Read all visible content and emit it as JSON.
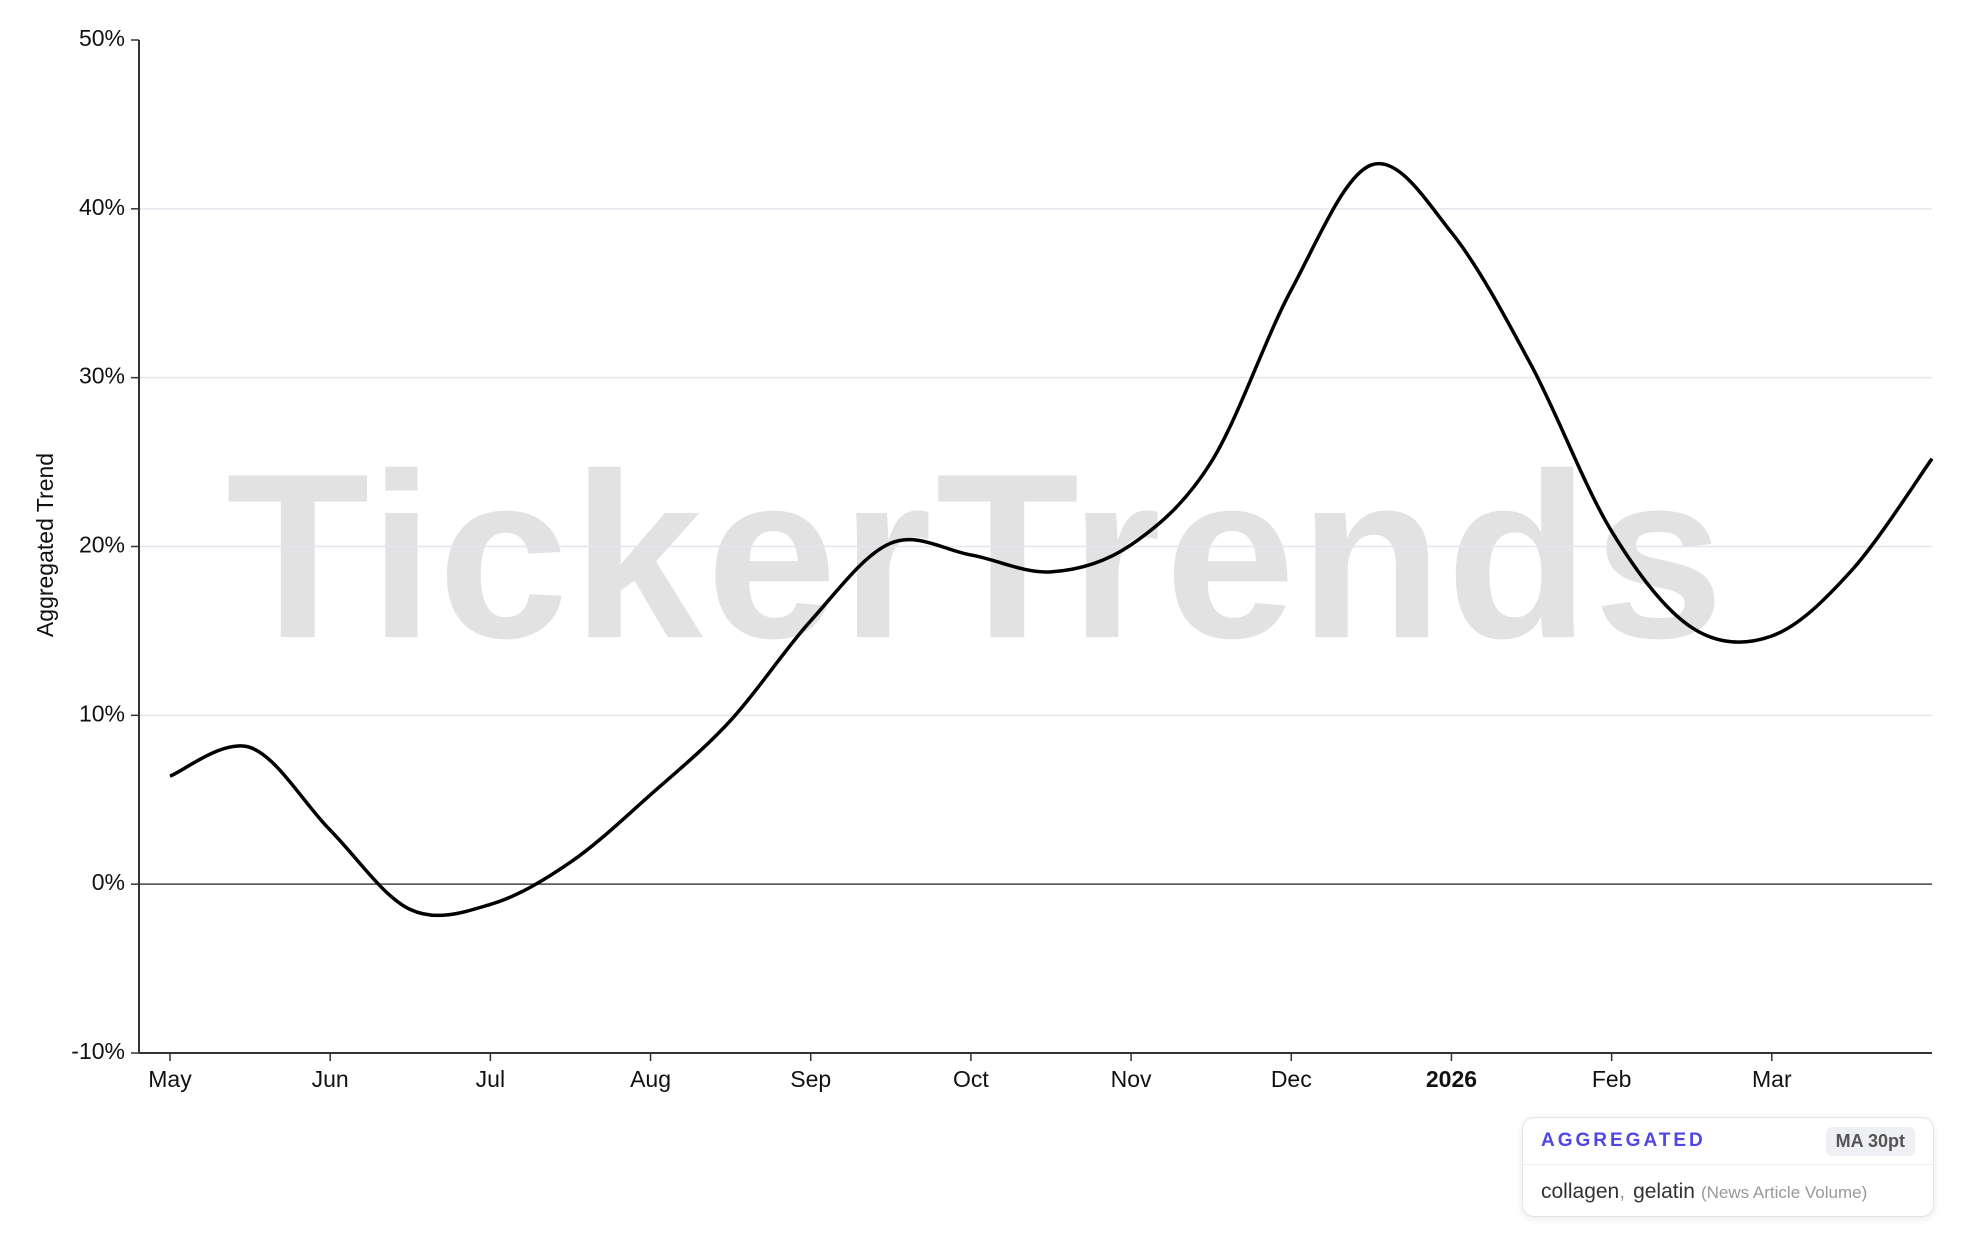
{
  "chart_data": {
    "type": "line",
    "watermark": "TickerTrends",
    "ylabel": "Aggregated Trend",
    "categories": [
      "May",
      null,
      "Jun",
      null,
      "Jul",
      null,
      "Aug",
      null,
      "Sep",
      null,
      "Oct",
      null,
      "Nov",
      null,
      "Dec",
      null,
      "2026",
      null,
      "Feb",
      null,
      "Mar",
      null,
      null
    ],
    "series": [
      {
        "name": "collagen, gelatin",
        "color": "#000000",
        "values": [
          6.4,
          8.1,
          3.2,
          -1.5,
          -1.2,
          1.3,
          5.3,
          9.7,
          15.6,
          20.2,
          19.5,
          18.5,
          20.1,
          25,
          35.2,
          42.6,
          38.6,
          30.7,
          20.9,
          15.2,
          14.7,
          18.6,
          25.2
        ]
      }
    ],
    "ylim": [
      -10,
      50
    ],
    "yticks": [
      {
        "value": -10,
        "label": "-10%"
      },
      {
        "value": 0,
        "label": "0%"
      },
      {
        "value": 10,
        "label": "10%"
      },
      {
        "value": 20,
        "label": "20%"
      },
      {
        "value": 30,
        "label": "30%"
      },
      {
        "value": 40,
        "label": "40%"
      },
      {
        "value": 50,
        "label": "50%"
      }
    ],
    "grid": true,
    "legend": {
      "badge": "AGGREGATED",
      "tag": "MA 30pt",
      "terms": [
        "collagen",
        "gelatin"
      ],
      "separator": ",",
      "source": "(News Article Volume)"
    }
  }
}
